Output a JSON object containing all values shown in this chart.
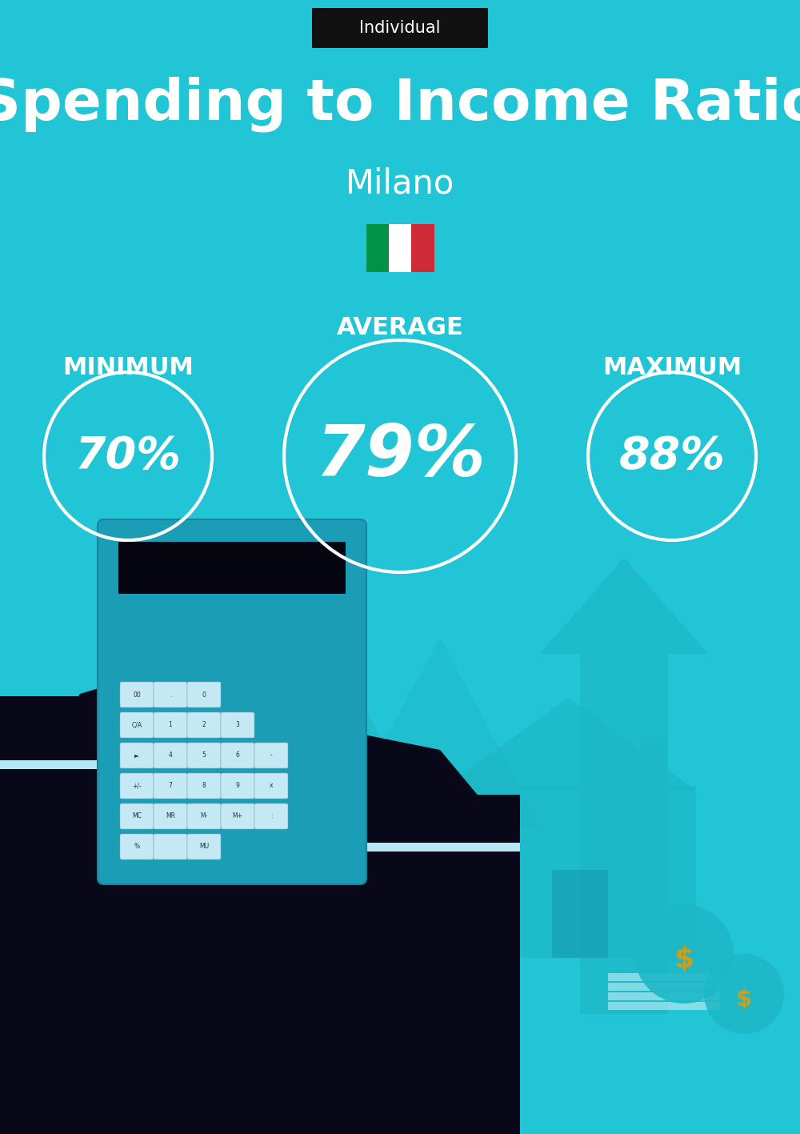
{
  "bg_color": "#22C5D5",
  "title": "Spending to Income Ratio",
  "city": "Milano",
  "tag_text": "Individual",
  "tag_bg": "#111111",
  "tag_text_color": "#ffffff",
  "average_label": "AVERAGE",
  "minimum_label": "MINIMUM",
  "maximum_label": "MAXIMUM",
  "min_value": "70%",
  "avg_value": "79%",
  "max_value": "88%",
  "text_color": "#ffffff",
  "title_fontsize": 52,
  "city_fontsize": 30,
  "label_fontsize": 22,
  "min_max_fontsize": 40,
  "avg_fontsize": 64,
  "tag_fontsize": 15,
  "italy_flag_colors": [
    "#009246",
    "#ffffff",
    "#ce2b37"
  ],
  "fig_width": 10.0,
  "fig_height": 14.17,
  "lighter_teal": "#1DB8C8",
  "hand_color": "#080818",
  "calc_color": "#1A9DB5",
  "dollar_color": "#C8A020",
  "circle_lw": 3.0
}
